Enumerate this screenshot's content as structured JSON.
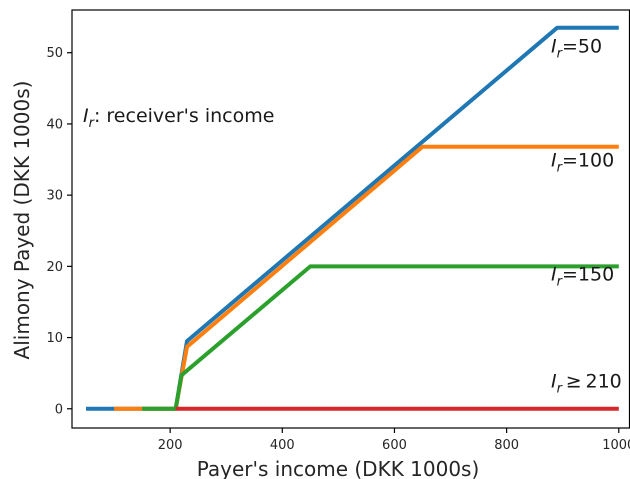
{
  "chart_data": {
    "type": "line",
    "xlabel": "Payer's income (DKK 1000s)",
    "ylabel": "Alimony Payed (DKK 1000s)",
    "xlim": [
      25,
      1020
    ],
    "ylim": [
      -2.7,
      56
    ],
    "xticks": [
      200,
      400,
      600,
      800,
      1000
    ],
    "yticks": [
      0,
      10,
      20,
      30,
      40,
      50
    ],
    "annotation": {
      "var": "I",
      "sub": "r",
      "text": ": receiver's income"
    },
    "grid": false,
    "series": [
      {
        "name": "50",
        "op": "=",
        "color": "#1f77b4",
        "points": [
          [
            50,
            0
          ],
          [
            210,
            0
          ],
          [
            230,
            9.5
          ],
          [
            890,
            53.5
          ],
          [
            1000,
            53.5
          ]
        ]
      },
      {
        "name": "100",
        "op": "=",
        "color": "#ff7f0e",
        "points": [
          [
            100,
            0
          ],
          [
            210,
            0
          ],
          [
            230,
            8.7
          ],
          [
            650,
            36.8
          ],
          [
            1000,
            36.8
          ]
        ]
      },
      {
        "name": "150",
        "op": "=",
        "color": "#2ca02c",
        "points": [
          [
            150,
            0
          ],
          [
            210,
            0
          ],
          [
            220,
            4.7
          ],
          [
            450,
            20
          ],
          [
            1000,
            20
          ]
        ]
      },
      {
        "name": "210",
        "op": "≥",
        "color": "#d62728",
        "points": [
          [
            210,
            0
          ],
          [
            1000,
            0
          ]
        ]
      }
    ],
    "series_label_y": [
      50,
      34,
      18,
      3
    ]
  }
}
